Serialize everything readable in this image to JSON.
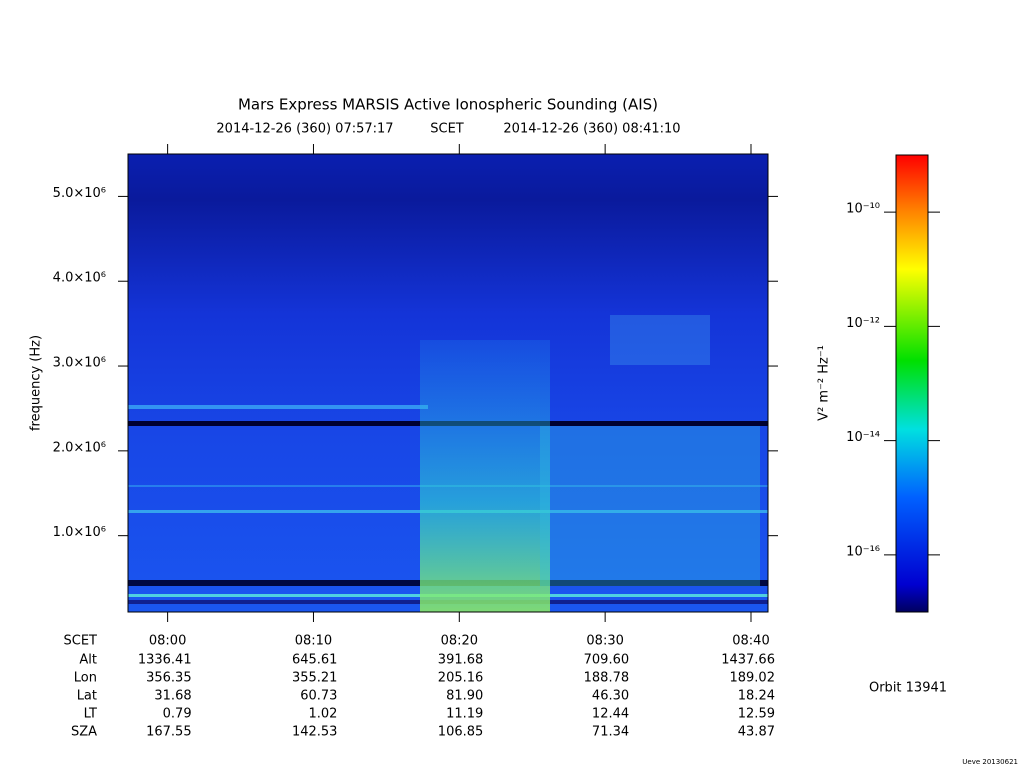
{
  "chart_data": {
    "type": "spectrogram",
    "title": "Mars Express MARSIS Active Ionospheric Sounding (AIS)",
    "start_time": "2014-12-26 (360) 07:57:17",
    "time_system": "SCET",
    "end_time": "2014-12-26 (360) 08:41:10",
    "ylabel": "frequency (Hz)",
    "xlim": [
      "2014-12-26T07:57:17Z",
      "2014-12-26T08:41:10Z"
    ],
    "xticks": [
      {
        "value": "2014-12-26T08:00:00Z",
        "label": "08:00"
      },
      {
        "value": "2014-12-26T08:10:00Z",
        "label": "08:10"
      },
      {
        "value": "2014-12-26T08:20:00Z",
        "label": "08:20"
      },
      {
        "value": "2014-12-26T08:30:00Z",
        "label": "08:30"
      },
      {
        "value": "2014-12-26T08:40:00Z",
        "label": "08:40"
      }
    ],
    "ylim": [
      100000,
      5500000
    ],
    "yticks": [
      {
        "value": 1000000,
        "label": "1.0×10⁶"
      },
      {
        "value": 2000000,
        "label": "2.0×10⁶"
      },
      {
        "value": 3000000,
        "label": "3.0×10⁶"
      },
      {
        "value": 4000000,
        "label": "4.0×10⁶"
      },
      {
        "value": 5000000,
        "label": "5.0×10⁶"
      }
    ],
    "colorbar": {
      "label": "V² m⁻² Hz⁻¹",
      "log_scale": true,
      "zlim": [
        1e-17,
        1e-09
      ],
      "ticks": [
        {
          "value": 1e-16,
          "label": "10⁻¹⁶"
        },
        {
          "value": 1e-14,
          "label": "10⁻¹⁴"
        },
        {
          "value": 1e-12,
          "label": "10⁻¹²"
        },
        {
          "value": 1e-10,
          "label": "10⁻¹⁰"
        }
      ]
    },
    "ephemeris": {
      "time_row": "SCET",
      "rows": [
        {
          "name": "Alt",
          "values": [
            "1336.41",
            "645.61",
            "391.68",
            "709.60",
            "1437.66"
          ]
        },
        {
          "name": "Lon",
          "values": [
            "356.35",
            "355.21",
            "205.16",
            "188.78",
            "189.02"
          ]
        },
        {
          "name": "Lat",
          "values": [
            "31.68",
            "60.73",
            "81.90",
            "46.30",
            "18.24"
          ]
        },
        {
          "name": "LT",
          "values": [
            "0.79",
            "1.02",
            "11.19",
            "12.44",
            "12.59"
          ]
        },
        {
          "name": "SZA",
          "values": [
            "167.55",
            "142.53",
            "106.85",
            "71.34",
            "43.87"
          ]
        }
      ]
    },
    "orbit": "Orbit 13941",
    "footer": "Ueve 20130621"
  }
}
